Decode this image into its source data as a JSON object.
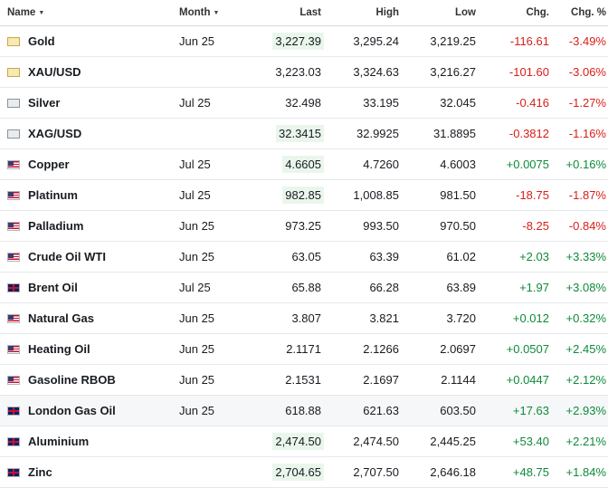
{
  "headers": {
    "name": "Name",
    "month": "Month",
    "last": "Last",
    "high": "High",
    "low": "Low",
    "chg": "Chg.",
    "pct": "Chg. %"
  },
  "colors": {
    "negative": "#d91e18",
    "positive": "#0f8a3b",
    "highlight": "#eaf6ec"
  },
  "rows": [
    {
      "name": "Gold",
      "flag": "gold-icon",
      "month": "Jun 25",
      "last": "3,227.39",
      "high": "3,295.24",
      "low": "3,219.25",
      "chg": "-116.61",
      "pct": "-3.49%",
      "dir": "neg",
      "hl": true
    },
    {
      "name": "XAU/USD",
      "flag": "gold-icon",
      "month": "",
      "last": "3,223.03",
      "high": "3,324.63",
      "low": "3,216.27",
      "chg": "-101.60",
      "pct": "-3.06%",
      "dir": "neg",
      "hl": false
    },
    {
      "name": "Silver",
      "flag": "silver-icon",
      "month": "Jul 25",
      "last": "32.498",
      "high": "33.195",
      "low": "32.045",
      "chg": "-0.416",
      "pct": "-1.27%",
      "dir": "neg",
      "hl": false
    },
    {
      "name": "XAG/USD",
      "flag": "silver-icon",
      "month": "",
      "last": "32.3415",
      "high": "32.9925",
      "low": "31.8895",
      "chg": "-0.3812",
      "pct": "-1.16%",
      "dir": "neg",
      "hl": true
    },
    {
      "name": "Copper",
      "flag": "us-flag-icon",
      "month": "Jul 25",
      "last": "4.6605",
      "high": "4.7260",
      "low": "4.6003",
      "chg": "+0.0075",
      "pct": "+0.16%",
      "dir": "pos",
      "hl": true
    },
    {
      "name": "Platinum",
      "flag": "us-flag-icon",
      "month": "Jul 25",
      "last": "982.85",
      "high": "1,008.85",
      "low": "981.50",
      "chg": "-18.75",
      "pct": "-1.87%",
      "dir": "neg",
      "hl": true
    },
    {
      "name": "Palladium",
      "flag": "us-flag-icon",
      "month": "Jun 25",
      "last": "973.25",
      "high": "993.50",
      "low": "970.50",
      "chg": "-8.25",
      "pct": "-0.84%",
      "dir": "neg",
      "hl": false
    },
    {
      "name": "Crude Oil WTI",
      "flag": "us-flag-icon",
      "month": "Jun 25",
      "last": "63.05",
      "high": "63.39",
      "low": "61.02",
      "chg": "+2.03",
      "pct": "+3.33%",
      "dir": "pos",
      "hl": false
    },
    {
      "name": "Brent Oil",
      "flag": "uk-flag-icon",
      "month": "Jul 25",
      "last": "65.88",
      "high": "66.28",
      "low": "63.89",
      "chg": "+1.97",
      "pct": "+3.08%",
      "dir": "pos",
      "hl": false
    },
    {
      "name": "Natural Gas",
      "flag": "us-flag-icon",
      "month": "Jun 25",
      "last": "3.807",
      "high": "3.821",
      "low": "3.720",
      "chg": "+0.012",
      "pct": "+0.32%",
      "dir": "pos",
      "hl": false
    },
    {
      "name": "Heating Oil",
      "flag": "us-flag-icon",
      "month": "Jun 25",
      "last": "2.1171",
      "high": "2.1266",
      "low": "2.0697",
      "chg": "+0.0507",
      "pct": "+2.45%",
      "dir": "pos",
      "hl": false
    },
    {
      "name": "Gasoline RBOB",
      "flag": "us-flag-icon",
      "month": "Jun 25",
      "last": "2.1531",
      "high": "2.1697",
      "low": "2.1144",
      "chg": "+0.0447",
      "pct": "+2.12%",
      "dir": "pos",
      "hl": false
    },
    {
      "name": "London Gas Oil",
      "flag": "uk-flag-icon",
      "month": "Jun 25",
      "last": "618.88",
      "high": "621.63",
      "low": "603.50",
      "chg": "+17.63",
      "pct": "+2.93%",
      "dir": "pos",
      "hl": false,
      "alt": true
    },
    {
      "name": "Aluminium",
      "flag": "uk-flag-icon",
      "month": "",
      "last": "2,474.50",
      "high": "2,474.50",
      "low": "2,445.25",
      "chg": "+53.40",
      "pct": "+2.21%",
      "dir": "pos",
      "hl": true
    },
    {
      "name": "Zinc",
      "flag": "uk-flag-icon",
      "month": "",
      "last": "2,704.65",
      "high": "2,707.50",
      "low": "2,646.18",
      "chg": "+48.75",
      "pct": "+1.84%",
      "dir": "pos",
      "hl": true
    }
  ]
}
